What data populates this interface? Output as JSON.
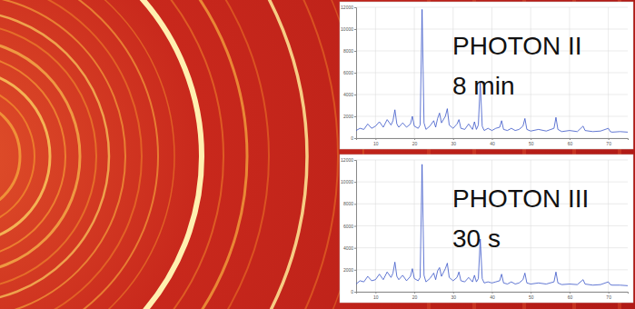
{
  "chart_data": [
    {
      "type": "line",
      "title": "PHOTON II",
      "subtitle": "8 min",
      "color": "#3a55c8",
      "grid": true,
      "xlim": [
        5,
        75
      ],
      "xticks": [
        10,
        20,
        30,
        40,
        50,
        60,
        70
      ],
      "ylim": [
        0,
        12000
      ],
      "yticks": [
        0,
        2000,
        4000,
        6000,
        8000,
        10000,
        12000
      ],
      "x": [
        5,
        6,
        7,
        8,
        9,
        10,
        11,
        12,
        13,
        14,
        14.5,
        15,
        15.5,
        16,
        17,
        18,
        19,
        19.5,
        20,
        21,
        21.5,
        22,
        22.5,
        23,
        24,
        25,
        25.5,
        26,
        26.5,
        27,
        28,
        28.5,
        29,
        30,
        31,
        31.5,
        32,
        33,
        34,
        35,
        35.5,
        36,
        36.5,
        37,
        37.5,
        38,
        39,
        40,
        41,
        42,
        42.5,
        43,
        44,
        45,
        46,
        47,
        48,
        48.5,
        49,
        50,
        52,
        54,
        56,
        56.5,
        57,
        58,
        60,
        62,
        63.5,
        64,
        66,
        68,
        70,
        70.5,
        71,
        73,
        75
      ],
      "values": [
        700,
        900,
        800,
        1300,
        900,
        1100,
        1500,
        1000,
        1700,
        1200,
        1600,
        2600,
        1300,
        1000,
        1400,
        1000,
        1300,
        2000,
        1100,
        900,
        1200,
        11800,
        1400,
        800,
        1100,
        1600,
        1000,
        1800,
        2300,
        1400,
        2000,
        2700,
        1200,
        900,
        1300,
        1700,
        900,
        800,
        1300,
        800,
        1500,
        800,
        1200,
        5100,
        1100,
        700,
        900,
        700,
        900,
        1000,
        1600,
        800,
        700,
        900,
        700,
        800,
        1100,
        1800,
        800,
        650,
        800,
        650,
        900,
        1900,
        800,
        600,
        700,
        600,
        1100,
        700,
        600,
        650,
        900,
        600,
        550,
        600,
        550
      ]
    },
    {
      "type": "line",
      "title": "PHOTON III",
      "subtitle": "30 s",
      "color": "#3a55c8",
      "grid": true,
      "xlim": [
        5,
        75
      ],
      "xticks": [
        10,
        20,
        30,
        40,
        50,
        60,
        70
      ],
      "ylim": [
        0,
        12000
      ],
      "yticks": [
        0,
        2000,
        4000,
        6000,
        8000,
        10000,
        12000
      ],
      "x": [
        5,
        6,
        7,
        8,
        9,
        10,
        11,
        12,
        13,
        14,
        14.5,
        15,
        15.5,
        16,
        17,
        18,
        19,
        19.5,
        20,
        21,
        21.5,
        22,
        22.5,
        23,
        24,
        25,
        25.5,
        26,
        26.5,
        27,
        28,
        28.5,
        29,
        30,
        31,
        31.5,
        32,
        33,
        34,
        35,
        35.5,
        36,
        36.5,
        37,
        37.5,
        38,
        39,
        40,
        41,
        42,
        42.5,
        43,
        44,
        45,
        46,
        47,
        48,
        48.5,
        49,
        50,
        52,
        54,
        56,
        56.5,
        57,
        58,
        60,
        62,
        63.5,
        64,
        66,
        68,
        70,
        70.5,
        71,
        73,
        75
      ],
      "values": [
        700,
        1000,
        900,
        1400,
        1000,
        1100,
        1600,
        1100,
        1800,
        1300,
        1700,
        2700,
        1400,
        1100,
        1500,
        1000,
        1400,
        2100,
        1200,
        1000,
        1300,
        11600,
        1500,
        900,
        1200,
        1700,
        1100,
        1900,
        2200,
        1400,
        2100,
        2600,
        1300,
        1000,
        1300,
        1800,
        1000,
        900,
        1300,
        900,
        1500,
        900,
        1200,
        4800,
        1200,
        800,
        900,
        800,
        900,
        1000,
        1600,
        800,
        700,
        900,
        700,
        800,
        1100,
        1700,
        800,
        700,
        800,
        700,
        900,
        1800,
        800,
        650,
        700,
        650,
        1100,
        700,
        600,
        650,
        900,
        650,
        600,
        600,
        550
      ]
    }
  ]
}
